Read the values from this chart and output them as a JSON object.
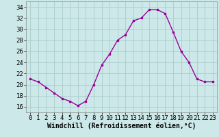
{
  "x": [
    0,
    1,
    2,
    3,
    4,
    5,
    6,
    7,
    8,
    9,
    10,
    11,
    12,
    13,
    14,
    15,
    16,
    17,
    18,
    19,
    20,
    21,
    22,
    23
  ],
  "y": [
    21,
    20.5,
    19.5,
    18.5,
    17.5,
    17,
    16.2,
    17,
    20,
    23.5,
    25.5,
    28,
    29,
    31.5,
    32,
    33.5,
    33.5,
    32.8,
    29.5,
    26,
    24,
    21,
    20.5,
    20.5
  ],
  "line_color": "#990099",
  "marker": "s",
  "marker_size": 2,
  "bg_color": "#cce8e8",
  "grid_color": "#aacccc",
  "xlabel": "Windchill (Refroidissement éolien,°C)",
  "xlabel_fontsize": 7,
  "ylim": [
    15,
    35
  ],
  "yticks": [
    16,
    18,
    20,
    22,
    24,
    26,
    28,
    30,
    32,
    34
  ],
  "xticks": [
    0,
    1,
    2,
    3,
    4,
    5,
    6,
    7,
    8,
    9,
    10,
    11,
    12,
    13,
    14,
    15,
    16,
    17,
    18,
    19,
    20,
    21,
    22,
    23
  ],
  "tick_fontsize": 6.5,
  "xlim_left": -0.5,
  "xlim_right": 23.5
}
